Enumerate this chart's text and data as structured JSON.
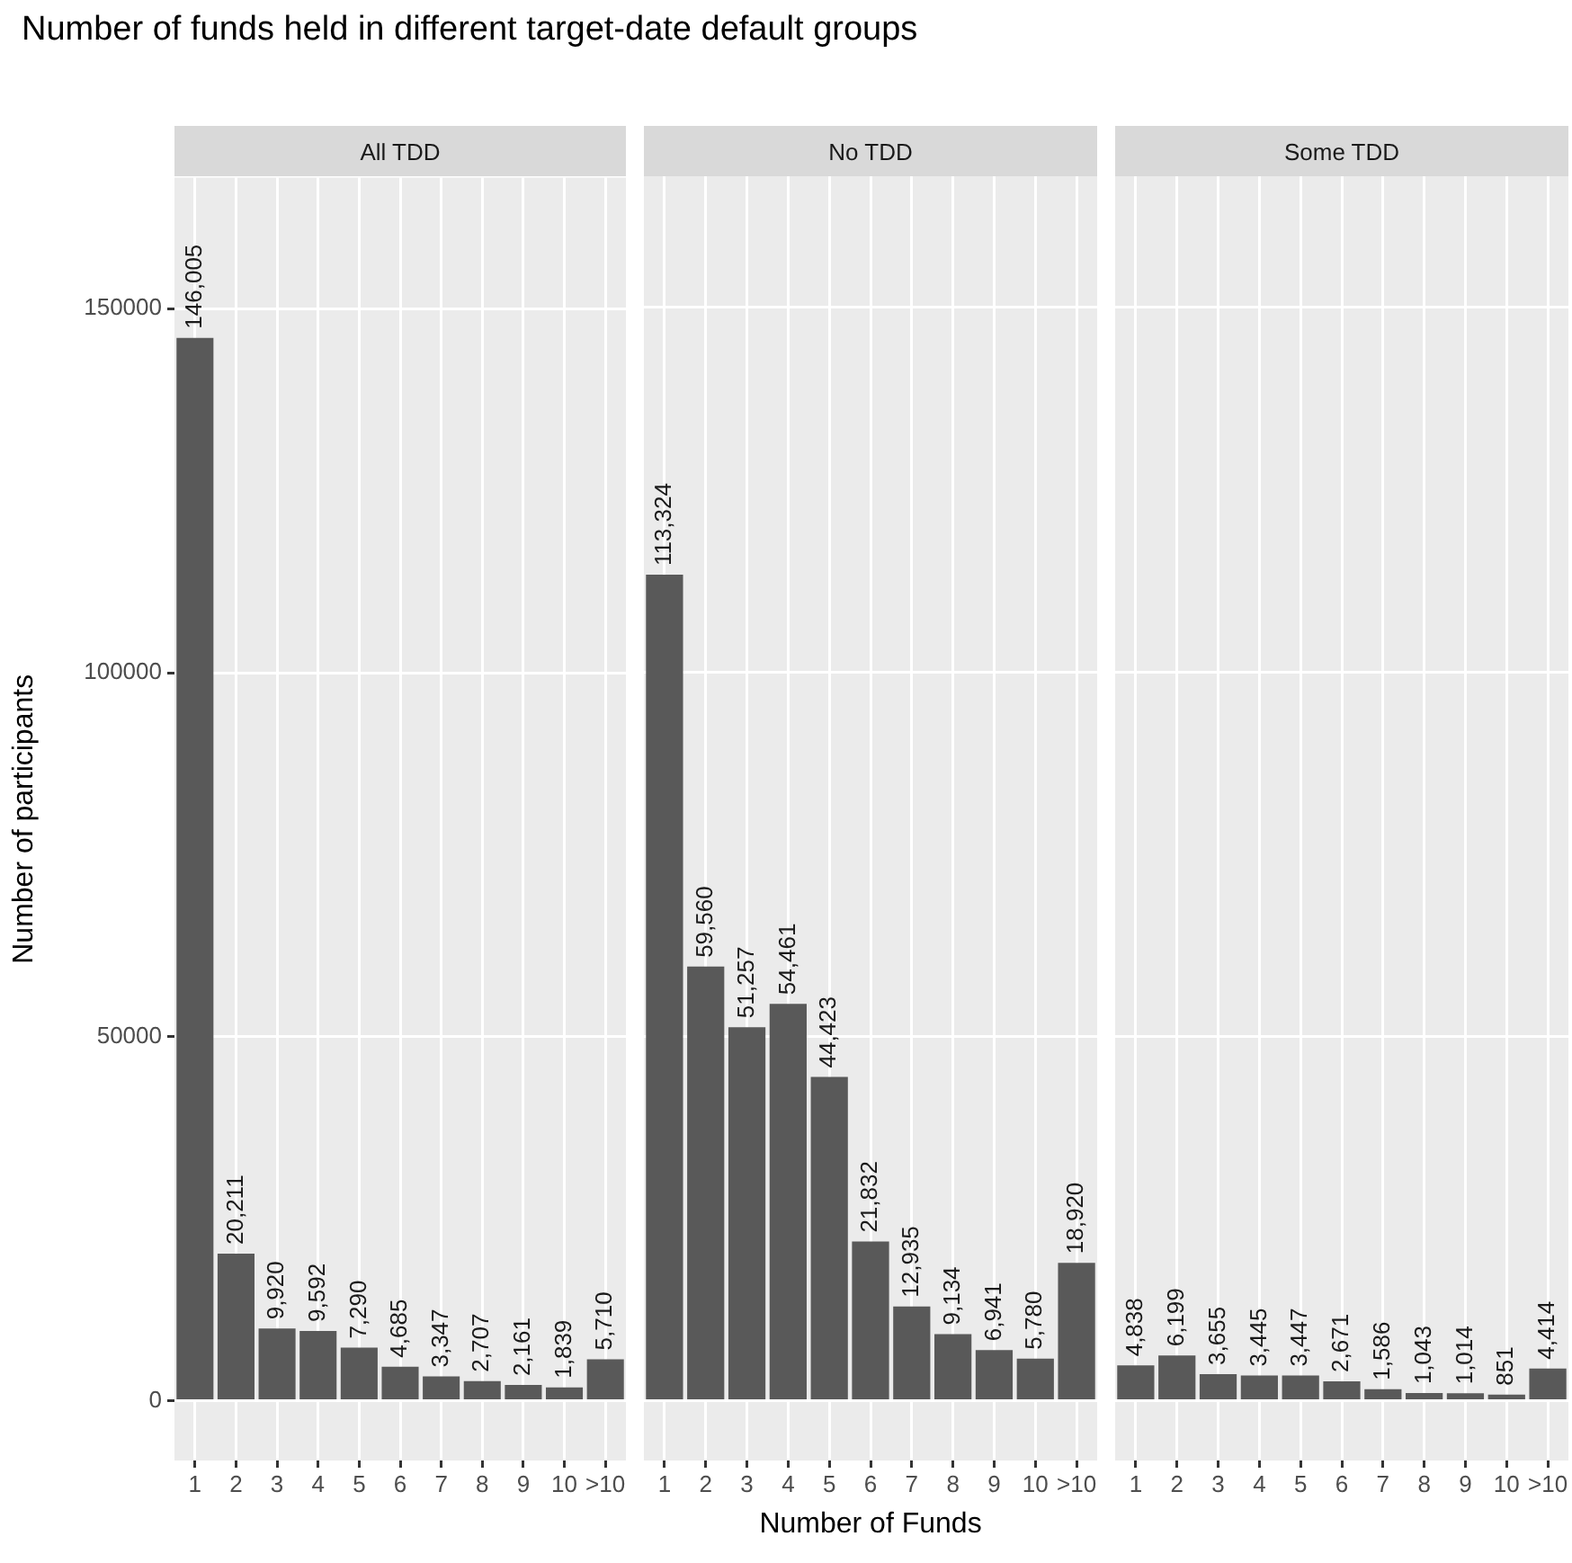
{
  "chart_data": [
    {
      "type": "bar",
      "title": "Number of funds held in different target-date default groups",
      "subtitle": "All TDD",
      "ylabel": "Number of participants",
      "categories": [
        "1",
        "2",
        "3",
        "4",
        "5",
        "6",
        "7",
        "8",
        "9",
        "10",
        ">10"
      ],
      "values": [
        146005,
        20211,
        9920,
        9592,
        7290,
        4685,
        3347,
        2707,
        2161,
        1839,
        5710
      ],
      "value_labels": [
        "146,005",
        "20,211",
        "9,920",
        "9,592",
        "7,290",
        "4,685",
        "3,347",
        "2,707",
        "2,161",
        "1,839",
        "5,710"
      ],
      "color": "#595959",
      "ylim": [
        -8200,
        168000
      ],
      "yticks": [
        0,
        50000,
        100000,
        150000
      ],
      "grid": true
    },
    {
      "type": "bar",
      "subtitle": "No TDD",
      "xlabel": "Number of Funds",
      "categories": [
        "1",
        "2",
        "3",
        "4",
        "5",
        "6",
        "7",
        "8",
        "9",
        "10",
        ">10"
      ],
      "values": [
        113324,
        59560,
        51257,
        54461,
        44423,
        21832,
        12935,
        9134,
        6941,
        5780,
        18920
      ],
      "value_labels": [
        "113,324",
        "59,560",
        "51,257",
        "54,461",
        "44,423",
        "21,832",
        "12,935",
        "9,134",
        "6,941",
        "5,780",
        "18,920"
      ],
      "color": "#595959",
      "ylim": [
        -8200,
        168000
      ],
      "yticks": [
        0,
        50000,
        100000,
        150000
      ],
      "grid": true,
      "tick_labels": "x"
    },
    {
      "type": "bar",
      "subtitle": "Some TDD",
      "categories": [
        "1",
        "2",
        "3",
        "4",
        "5",
        "6",
        "7",
        "8",
        "9",
        "10",
        ">10"
      ],
      "values": [
        4838,
        6199,
        3655,
        3445,
        3447,
        2671,
        1586,
        1043,
        1014,
        851,
        4414
      ],
      "value_labels": [
        "4,838",
        "6,199",
        "3,655",
        "3,445",
        "3,447",
        "2,671",
        "1,586",
        "1,043",
        "1,014",
        "851",
        "4,414"
      ],
      "color": "#595959",
      "ylim": [
        -8200,
        168000
      ],
      "yticks": [
        0,
        50000,
        100000,
        150000
      ],
      "grid": true,
      "tick_labels": "x"
    }
  ]
}
